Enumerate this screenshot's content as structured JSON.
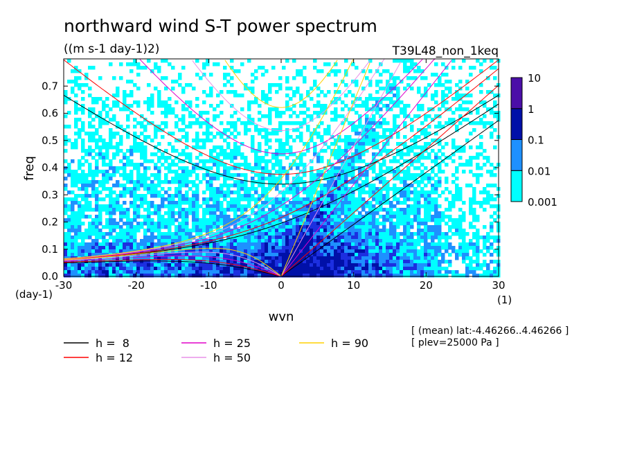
{
  "chart_data": {
    "type": "heatmap",
    "title": "northward wind S-T power spectrum",
    "units": "((m s-1 day-1)2)",
    "experiment": "T39L48_non_1keq",
    "xlabel": "wvn",
    "xunit": "(1)",
    "ylabel": "freq",
    "yunit": "(day-1)",
    "xlim": [
      -30,
      30
    ],
    "ylim": [
      0,
      0.8
    ],
    "x_ticks": [
      "-30",
      "-20",
      "-10",
      "0",
      "10",
      "20",
      "30"
    ],
    "y_ticks": [
      "0.0",
      "0.1",
      "0.2",
      "0.3",
      "0.4",
      "0.5",
      "0.6",
      "0.7"
    ],
    "colorbar": {
      "levels": [
        "0.001",
        "0.01",
        "0.1",
        "1",
        "10"
      ],
      "colors": [
        "#00ffff",
        "#1e90ff",
        "#1c2fe0",
        "#0010a8",
        "#4b0fa8"
      ]
    },
    "dispersion_curves": [
      {
        "label": "h =  8",
        "h": 8,
        "color": "#000000"
      },
      {
        "label": "h = 12",
        "h": 12,
        "color": "#ff0000"
      },
      {
        "label": "h = 25",
        "h": 25,
        "color": "#e000c8"
      },
      {
        "label": "h = 50",
        "h": 50,
        "color": "#e890e8"
      },
      {
        "label": "h = 90",
        "h": 90,
        "color": "#ffd000"
      }
    ],
    "annotations": [
      "[ (mean) lat:-4.46266..4.46266 ]",
      "[ plev=25000 Pa ]"
    ],
    "grid": false
  }
}
